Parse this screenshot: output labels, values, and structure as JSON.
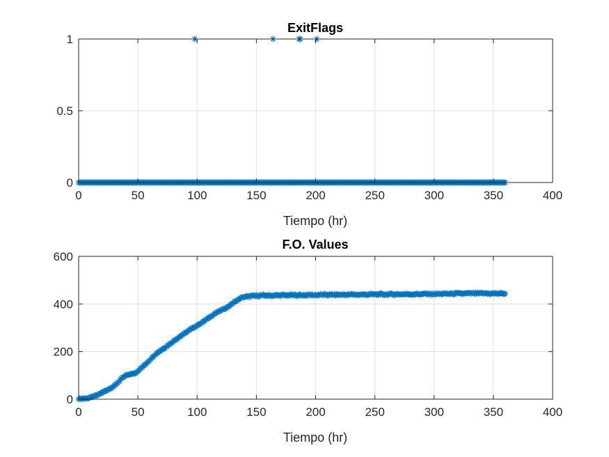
{
  "colors": {
    "series": "#0072BD"
  },
  "chart_data": [
    {
      "type": "scatter",
      "marker": "asterisk",
      "title": "ExitFlags",
      "xlabel": "Tiempo (hr)",
      "ylabel": "",
      "xlim": [
        0,
        400
      ],
      "ylim": [
        0,
        1
      ],
      "xticks": [
        0,
        50,
        100,
        150,
        200,
        250,
        300,
        350,
        400
      ],
      "yticks": [
        0,
        0.5,
        1
      ],
      "grid": true,
      "legend": "none",
      "series": [
        {
          "x_range": [
            0,
            360
          ],
          "x_step": 1,
          "default_y": 0,
          "overrides": [
            {
              "x": 98,
              "y": 1
            },
            {
              "x": 164,
              "y": 1
            },
            {
              "x": 186,
              "y": 1
            },
            {
              "x": 187,
              "y": 1
            },
            {
              "x": 201,
              "y": 1
            }
          ]
        }
      ]
    },
    {
      "type": "scatter",
      "marker": "asterisk",
      "title": "F.O. Values",
      "xlabel": "Tiempo (hr)",
      "ylabel": "",
      "xlim": [
        0,
        400
      ],
      "ylim": [
        0,
        600
      ],
      "xticks": [
        0,
        50,
        100,
        150,
        200,
        250,
        300,
        350,
        400
      ],
      "yticks": [
        0,
        200,
        400,
        600
      ],
      "grid": true,
      "legend": "none",
      "series": [
        {
          "x_range": [
            0,
            360
          ],
          "x_step": 1,
          "keypoints": [
            [
              0,
              2
            ],
            [
              8,
              4
            ],
            [
              15,
              15
            ],
            [
              20,
              28
            ],
            [
              30,
              55
            ],
            [
              36,
              85
            ],
            [
              40,
              100
            ],
            [
              48,
              110
            ],
            [
              55,
              140
            ],
            [
              65,
              190
            ],
            [
              75,
              225
            ],
            [
              85,
              262
            ],
            [
              95,
              295
            ],
            [
              105,
              325
            ],
            [
              115,
              360
            ],
            [
              125,
              385
            ],
            [
              132,
              410
            ],
            [
              138,
              428
            ],
            [
              150,
              435
            ],
            [
              200,
              438
            ],
            [
              250,
              440
            ],
            [
              300,
              442
            ],
            [
              330,
              444
            ],
            [
              360,
              444
            ]
          ],
          "jitter": 4
        }
      ]
    }
  ]
}
